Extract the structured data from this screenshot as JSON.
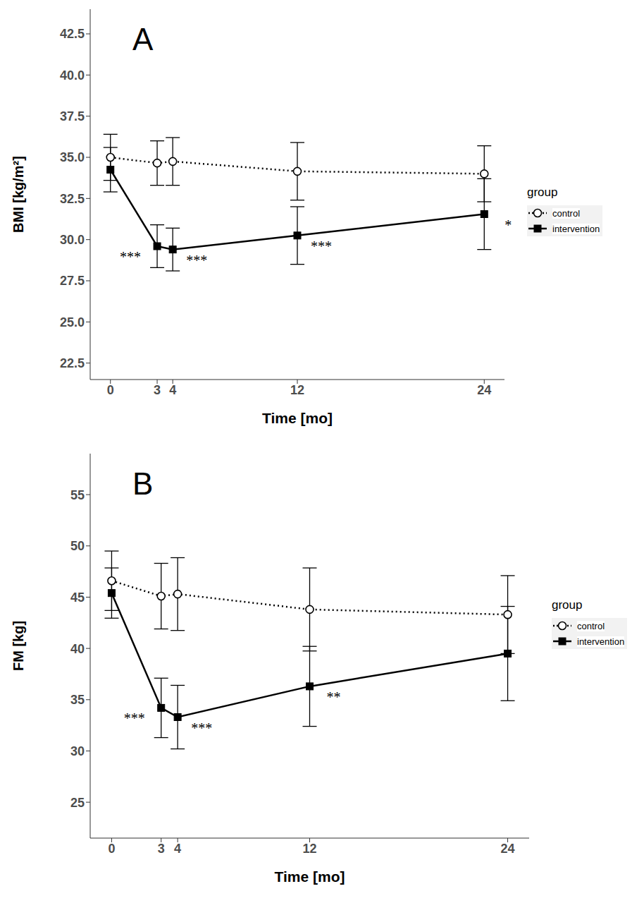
{
  "chart_data": [
    {
      "type": "line",
      "title": "A",
      "x_label": "Time [mo]",
      "y_label": "BMI [kg/m²]",
      "legend_title": "group",
      "legend": "right",
      "x": [
        0,
        3,
        4,
        12,
        24
      ],
      "xlim": [
        -1.3,
        25.3
      ],
      "xticks": [
        0,
        3,
        4,
        12,
        24
      ],
      "ylim": [
        21.5,
        44
      ],
      "yticks": [
        22.5,
        {
          "value": 25,
          "label": "25.0"
        },
        27.5,
        {
          "value": 30,
          "label": "30.0"
        },
        32.5,
        {
          "value": 35,
          "label": "35.0"
        },
        37.5,
        {
          "value": 40,
          "label": "40.0"
        },
        42.5
      ],
      "series": [
        {
          "name": "control",
          "color": "#000000",
          "marker": "circle_open",
          "line_style": "dotted",
          "values": [
            35.0,
            34.65,
            34.75,
            34.15,
            34.0
          ],
          "error": [
            1.4,
            1.35,
            1.45,
            1.75,
            1.7
          ]
        },
        {
          "name": "intervention",
          "color": "#000000",
          "marker": "square",
          "line_style": "solid",
          "values": [
            34.25,
            29.6,
            29.4,
            30.25,
            31.55
          ],
          "error": [
            1.35,
            1.3,
            1.3,
            1.75,
            2.15
          ],
          "significance": [
            null,
            "***",
            "***",
            "***",
            "*"
          ]
        }
      ]
    },
    {
      "type": "line",
      "title": "B",
      "x_label": "Time [mo]",
      "y_label": "FM [kg]",
      "legend_title": "group",
      "legend": "right",
      "x": [
        0,
        3,
        4,
        12,
        24
      ],
      "xlim": [
        -1.3,
        25.3
      ],
      "xticks": [
        0,
        3,
        4,
        12,
        24
      ],
      "ylim": [
        21.5,
        59
      ],
      "yticks": [
        25,
        30,
        35,
        40,
        45,
        50,
        55
      ],
      "series": [
        {
          "name": "control",
          "color": "#000000",
          "marker": "circle_open",
          "line_style": "dotted",
          "values": [
            46.6,
            45.1,
            45.3,
            43.8,
            43.3
          ],
          "error": [
            2.9,
            3.2,
            3.55,
            4.05,
            3.8
          ]
        },
        {
          "name": "intervention",
          "color": "#000000",
          "marker": "square",
          "line_style": "solid",
          "values": [
            45.4,
            34.2,
            33.3,
            36.3,
            39.5
          ],
          "error": [
            2.45,
            2.9,
            3.1,
            3.9,
            4.6
          ],
          "significance": [
            null,
            "***",
            "***",
            "**",
            null
          ]
        }
      ]
    }
  ]
}
